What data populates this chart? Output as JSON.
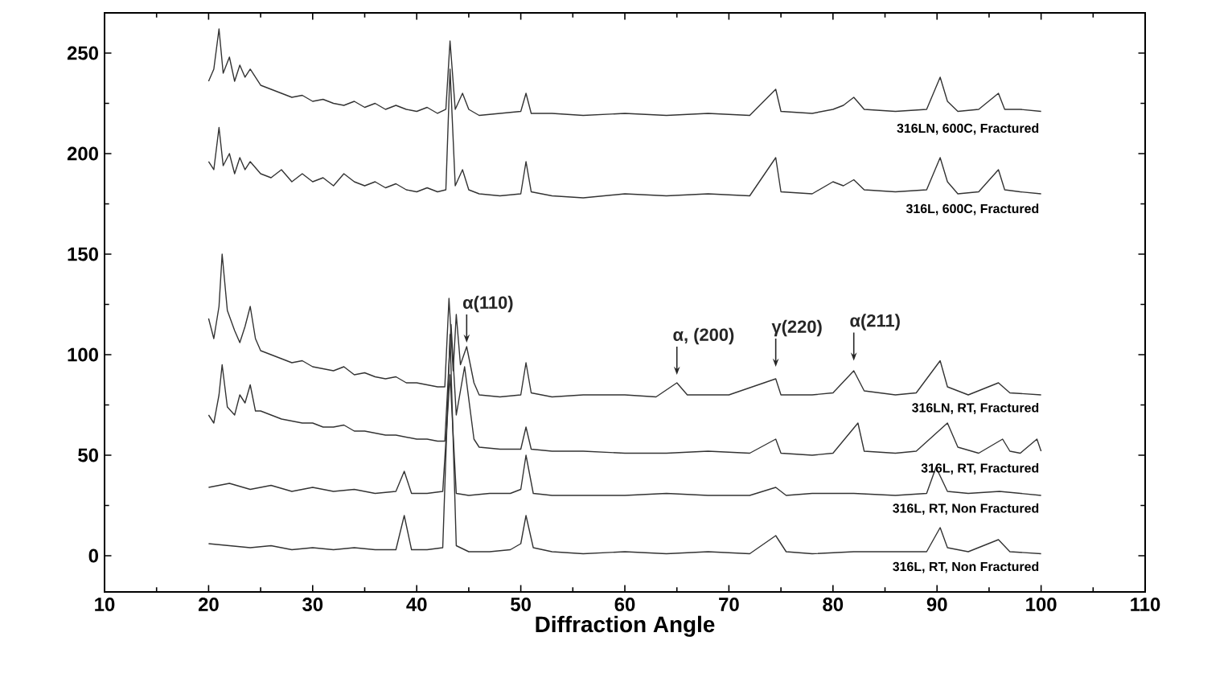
{
  "chart_data": {
    "type": "line",
    "xlabel": "Diffraction Angle",
    "xlim": [
      10,
      110
    ],
    "ylim": [
      -18,
      270
    ],
    "xticks": [
      10,
      20,
      30,
      40,
      50,
      60,
      70,
      80,
      90,
      100,
      110
    ],
    "yticks": [
      0,
      50,
      100,
      150,
      200,
      250
    ],
    "annotations": [
      {
        "text": "α(110)",
        "x": 44.8,
        "y": 104
      },
      {
        "text": "α, (200)",
        "x": 65,
        "y": 88
      },
      {
        "text": "γ(220)",
        "x": 74.5,
        "y": 92
      },
      {
        "text": "α(211)",
        "x": 82,
        "y": 95
      }
    ],
    "series": [
      {
        "name": "316LN, 600C, Fractured",
        "color": "#333333",
        "x": [
          20,
          20.5,
          21,
          21.4,
          22,
          22.5,
          23,
          23.5,
          24,
          25,
          26,
          27,
          28,
          29,
          30,
          31,
          32,
          33,
          34,
          35,
          36,
          37,
          38,
          39,
          40,
          41,
          42,
          42.8,
          43.2,
          43.7,
          44.4,
          45,
          46,
          48,
          50,
          50.5,
          51,
          53,
          56,
          60,
          64,
          68,
          72,
          74.5,
          75,
          78,
          80,
          81,
          82,
          83,
          86,
          89,
          90.3,
          91,
          92,
          94,
          95.9,
          96.5,
          98,
          100
        ],
        "values": [
          236,
          242,
          262,
          240,
          248,
          236,
          244,
          238,
          242,
          234,
          232,
          230,
          228,
          229,
          226,
          227,
          225,
          224,
          226,
          223,
          225,
          222,
          224,
          222,
          221,
          223,
          220,
          222,
          256,
          222,
          230,
          222,
          219,
          220,
          221,
          230,
          220,
          220,
          219,
          220,
          219,
          220,
          219,
          232,
          221,
          220,
          222,
          224,
          228,
          222,
          221,
          222,
          238,
          226,
          221,
          222,
          230,
          222,
          222,
          221
        ]
      },
      {
        "name": "316L, 600C, Fractured",
        "color": "#333333",
        "x": [
          20,
          20.5,
          21,
          21.4,
          22,
          22.5,
          23,
          23.5,
          24,
          25,
          26,
          27,
          28,
          29,
          30,
          31,
          32,
          33,
          34,
          35,
          36,
          37,
          38,
          39,
          40,
          41,
          42,
          42.8,
          43.2,
          43.7,
          44.4,
          45,
          46,
          48,
          50,
          50.5,
          51,
          53,
          56,
          60,
          64,
          68,
          72,
          74.5,
          75,
          78,
          80,
          81,
          82,
          83,
          86,
          89,
          90.3,
          91,
          92,
          94,
          95.9,
          96.5,
          98,
          100
        ],
        "values": [
          196,
          192,
          213,
          194,
          200,
          190,
          198,
          192,
          196,
          190,
          188,
          192,
          186,
          190,
          186,
          188,
          184,
          190,
          186,
          184,
          186,
          183,
          185,
          182,
          181,
          183,
          181,
          182,
          242,
          184,
          192,
          182,
          180,
          179,
          180,
          196,
          181,
          179,
          178,
          180,
          179,
          180,
          179,
          198,
          181,
          180,
          186,
          184,
          187,
          182,
          181,
          182,
          198,
          186,
          180,
          181,
          192,
          182,
          181,
          180
        ]
      },
      {
        "name": "316LN, RT, Fractured",
        "color": "#333333",
        "x": [
          20,
          20.5,
          21,
          21.3,
          21.8,
          22.5,
          23,
          23.5,
          24,
          24.5,
          25,
          26,
          27,
          28,
          29,
          30,
          31,
          32,
          33,
          34,
          35,
          36,
          37,
          38,
          39,
          40,
          41,
          42,
          42.7,
          43.1,
          43.5,
          43.8,
          44.2,
          44.8,
          45.5,
          46,
          48,
          50,
          50.5,
          51,
          53,
          56,
          60,
          63,
          65,
          66,
          70,
          74.5,
          75,
          78,
          80,
          82,
          83,
          86,
          88,
          90.3,
          91,
          93,
          95.9,
          97,
          100
        ],
        "values": [
          118,
          108,
          124,
          150,
          122,
          112,
          106,
          114,
          124,
          108,
          102,
          100,
          98,
          96,
          97,
          94,
          93,
          92,
          94,
          90,
          91,
          89,
          88,
          89,
          86,
          86,
          85,
          84,
          84,
          128,
          92,
          120,
          95,
          104,
          86,
          80,
          79,
          80,
          96,
          81,
          79,
          80,
          80,
          79,
          86,
          80,
          80,
          88,
          80,
          80,
          81,
          92,
          82,
          80,
          81,
          97,
          84,
          80,
          86,
          81,
          80
        ]
      },
      {
        "name": "316L, RT, Fractured",
        "color": "#333333",
        "x": [
          20,
          20.5,
          21,
          21.3,
          21.8,
          22.5,
          23,
          23.5,
          24,
          24.5,
          25,
          26,
          27,
          28,
          29,
          30,
          31,
          32,
          33,
          34,
          35,
          36,
          37,
          38,
          39,
          40,
          41,
          42,
          42.7,
          43.3,
          43.8,
          44.6,
          45.5,
          46,
          48,
          50,
          50.5,
          51,
          53,
          56,
          60,
          64,
          68,
          72,
          74.5,
          75,
          78,
          80,
          82.4,
          83,
          86,
          88,
          91,
          92,
          94,
          96.3,
          97,
          98,
          99.6,
          100
        ],
        "values": [
          70,
          66,
          80,
          95,
          74,
          70,
          80,
          76,
          85,
          72,
          72,
          70,
          68,
          67,
          66,
          66,
          64,
          64,
          65,
          62,
          62,
          61,
          60,
          60,
          59,
          58,
          58,
          57,
          57,
          115,
          70,
          94,
          58,
          54,
          53,
          53,
          64,
          53,
          52,
          52,
          51,
          51,
          52,
          51,
          58,
          51,
          50,
          51,
          66,
          52,
          51,
          52,
          66,
          54,
          51,
          58,
          52,
          51,
          58,
          52
        ]
      },
      {
        "name": "316L, RT, Non Fractured",
        "color": "#333333",
        "x": [
          20,
          22,
          24,
          26,
          28,
          30,
          32,
          34,
          36,
          38,
          38.8,
          39.5,
          41,
          42.5,
          43.2,
          43.8,
          45,
          47,
          49,
          50,
          50.5,
          51.2,
          53,
          56,
          60,
          64,
          68,
          72,
          74.5,
          75.5,
          78,
          82,
          86,
          89,
          89.9,
          91,
          93,
          96,
          100
        ],
        "values": [
          34,
          36,
          33,
          35,
          32,
          34,
          32,
          33,
          31,
          32,
          42,
          31,
          31,
          32,
          90,
          31,
          30,
          31,
          31,
          33,
          50,
          31,
          30,
          30,
          30,
          31,
          30,
          30,
          34,
          30,
          31,
          31,
          30,
          31,
          44,
          32,
          31,
          32,
          30
        ]
      },
      {
        "name": "316L, RT, Non Fractured",
        "color": "#333333",
        "x": [
          20,
          22,
          24,
          26,
          28,
          30,
          32,
          34,
          36,
          38,
          38.8,
          39.5,
          41,
          42.5,
          43.2,
          43.8,
          45,
          47,
          49,
          50,
          50.5,
          51.2,
          53,
          56,
          60,
          64,
          68,
          72,
          74.5,
          75.5,
          78,
          82,
          86,
          89,
          90.3,
          91,
          93,
          95.9,
          97,
          100
        ],
        "values": [
          6,
          5,
          4,
          5,
          3,
          4,
          3,
          4,
          3,
          3,
          20,
          3,
          3,
          4,
          110,
          5,
          2,
          2,
          3,
          6,
          20,
          4,
          2,
          1,
          2,
          1,
          2,
          1,
          10,
          2,
          1,
          2,
          2,
          2,
          14,
          4,
          2,
          8,
          2,
          1
        ]
      }
    ]
  }
}
